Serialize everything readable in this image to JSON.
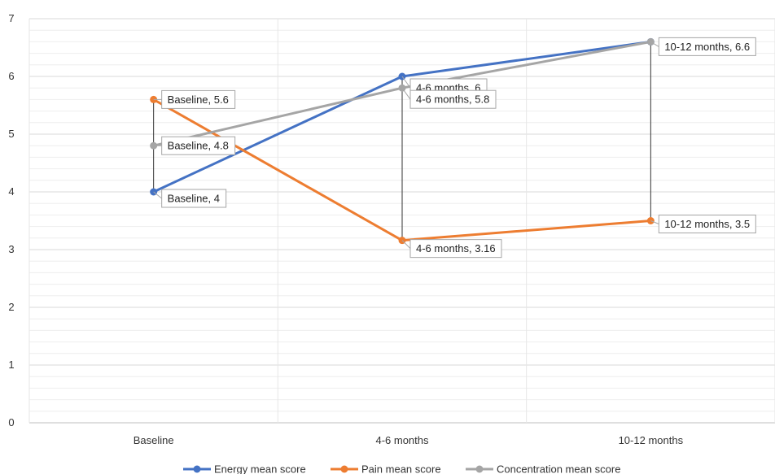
{
  "chart_data": {
    "type": "line",
    "categories": [
      "Baseline",
      "4-6 months",
      "10-12 months"
    ],
    "ylim": [
      0,
      7
    ],
    "y_major_ticks": [
      0,
      1,
      2,
      3,
      4,
      5,
      6,
      7
    ],
    "y_minor_step": 0.2,
    "grid": true,
    "legend_position": "bottom",
    "high_low_lines": true,
    "series": [
      {
        "name": "Energy mean score",
        "color": "#4472C4",
        "values": [
          4,
          6,
          6.6
        ],
        "data_labels": [
          "Baseline, 4",
          "4-6 months, 6",
          ""
        ]
      },
      {
        "name": "Pain mean score",
        "color": "#ED7D31",
        "values": [
          5.6,
          3.16,
          3.5
        ],
        "data_labels": [
          "Baseline, 5.6",
          "4-6 months, 3.16",
          "10-12 months, 3.5"
        ]
      },
      {
        "name": "Concentration mean score",
        "color": "#A5A5A5",
        "values": [
          4.8,
          5.8,
          6.6
        ],
        "data_labels": [
          "Baseline, 4.8",
          "4-6 months, 5.8",
          "10-12 months, 6.6"
        ]
      }
    ]
  }
}
